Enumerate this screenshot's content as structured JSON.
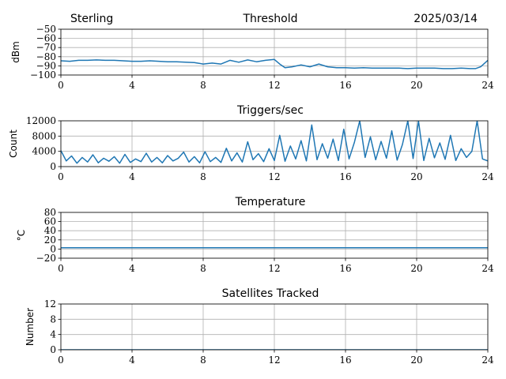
{
  "header": {
    "station": "Sterling",
    "date": "2025/03/14"
  },
  "colors": {
    "series": "#1f77b4",
    "grid": "#b0b0b0"
  },
  "chart_data": [
    {
      "id": "threshold",
      "type": "line",
      "title": "Threshold",
      "xlabel": "",
      "ylabel": "dBm",
      "xlim": [
        0,
        24
      ],
      "ylim": [
        -100,
        -50
      ],
      "xticks": [
        0,
        4,
        8,
        12,
        16,
        20,
        24
      ],
      "yticks": [
        -100,
        -90,
        -80,
        -70,
        -60,
        -50
      ],
      "ytick_labels": [
        "−100",
        "−90",
        "−80",
        "−70",
        "−60",
        "−50"
      ],
      "grid": true,
      "series": [
        {
          "x": [
            0,
            0.5,
            1,
            1.5,
            2,
            2.5,
            3,
            3.5,
            4,
            4.5,
            5,
            5.5,
            6,
            6.5,
            7,
            7.5,
            8,
            8.5,
            9,
            9.5,
            10,
            10.5,
            11,
            11.5,
            12,
            12.3,
            12.6,
            13,
            13.5,
            14,
            14.5,
            15,
            15.5,
            16,
            16.5,
            17,
            17.5,
            18,
            18.5,
            19,
            19.5,
            20,
            20.5,
            21,
            21.5,
            22,
            22.5,
            23,
            23.3,
            23.6,
            24
          ],
          "y": [
            -84.5,
            -85,
            -84,
            -84,
            -83.5,
            -84,
            -84,
            -84.5,
            -85,
            -85,
            -84.5,
            -85,
            -85.5,
            -85.5,
            -86,
            -86.5,
            -88,
            -87,
            -88,
            -84,
            -86,
            -83.5,
            -85.5,
            -84,
            -83,
            -88,
            -92,
            -91,
            -89,
            -91,
            -88,
            -91,
            -92,
            -92,
            -92.5,
            -92,
            -92.5,
            -92.5,
            -92.5,
            -92.5,
            -93,
            -92.5,
            -92.5,
            -92.5,
            -93,
            -93,
            -92.5,
            -93,
            -93,
            -91,
            -84
          ]
        }
      ]
    },
    {
      "id": "triggers",
      "type": "line",
      "title": "Triggers/sec",
      "xlabel": "",
      "ylabel": "Count",
      "xlim": [
        0,
        24
      ],
      "ylim": [
        0,
        12000
      ],
      "xticks": [
        0,
        4,
        8,
        12,
        16,
        20,
        24
      ],
      "yticks": [
        0,
        4000,
        8000,
        12000
      ],
      "ytick_labels": [
        "0",
        "4000",
        "8000",
        "12000"
      ],
      "grid": true,
      "series": [
        {
          "x": [
            0,
            0.3,
            0.6,
            0.9,
            1.2,
            1.5,
            1.8,
            2.1,
            2.4,
            2.7,
            3,
            3.3,
            3.6,
            3.9,
            4.2,
            4.5,
            4.8,
            5.1,
            5.4,
            5.7,
            6,
            6.3,
            6.6,
            6.9,
            7.2,
            7.5,
            7.8,
            8.1,
            8.4,
            8.7,
            9,
            9.3,
            9.6,
            9.9,
            10.2,
            10.5,
            10.8,
            11.1,
            11.4,
            11.7,
            12,
            12.3,
            12.6,
            12.9,
            13.2,
            13.5,
            13.8,
            14.1,
            14.4,
            14.7,
            15,
            15.3,
            15.6,
            15.9,
            16.2,
            16.5,
            16.8,
            17.1,
            17.4,
            17.7,
            18,
            18.3,
            18.6,
            18.9,
            19.2,
            19.5,
            19.8,
            20.1,
            20.4,
            20.7,
            21,
            21.3,
            21.6,
            21.9,
            22.2,
            22.5,
            22.8,
            23.1,
            23.4,
            23.7,
            24
          ],
          "y": [
            4200,
            1500,
            2800,
            900,
            2400,
            1200,
            3100,
            1000,
            2200,
            1400,
            2600,
            900,
            3200,
            1100,
            2000,
            1300,
            3500,
            1200,
            2400,
            1000,
            2900,
            1500,
            2200,
            3800,
            1200,
            2600,
            1000,
            3900,
            1300,
            2400,
            1100,
            4800,
            1500,
            3600,
            1200,
            6500,
            1800,
            3400,
            1300,
            4700,
            1600,
            8200,
            1400,
            5400,
            2000,
            6800,
            1500,
            10900,
            1800,
            6000,
            2200,
            7200,
            1600,
            9800,
            2000,
            6400,
            12000,
            2400,
            7800,
            1800,
            6600,
            2200,
            9400,
            1700,
            5800,
            12000,
            2100,
            12000,
            1600,
            7400,
            2300,
            6200,
            1900,
            8200,
            1600,
            4700,
            2400,
            4000,
            12000,
            2000,
            1500
          ]
        }
      ]
    },
    {
      "id": "temperature",
      "type": "line",
      "title": "Temperature",
      "xlabel": "",
      "ylabel": "°C",
      "xlim": [
        0,
        24
      ],
      "ylim": [
        -20,
        80
      ],
      "xticks": [
        0,
        4,
        8,
        12,
        16,
        20,
        24
      ],
      "yticks": [
        -20,
        0,
        20,
        40,
        60,
        80
      ],
      "ytick_labels": [
        "−20",
        "0",
        "20",
        "40",
        "60",
        "80"
      ],
      "grid": true,
      "series": [
        {
          "x": [
            0,
            24
          ],
          "y": [
            3,
            3
          ]
        }
      ]
    },
    {
      "id": "satellites",
      "type": "line",
      "title": "Satellites Tracked",
      "xlabel": "",
      "ylabel": "Number",
      "xlim": [
        0,
        24
      ],
      "ylim": [
        0,
        12
      ],
      "xticks": [
        0,
        4,
        8,
        12,
        16,
        20,
        24
      ],
      "yticks": [
        0,
        4,
        8,
        12
      ],
      "ytick_labels": [
        "0",
        "4",
        "8",
        "12"
      ],
      "grid": true,
      "series": [
        {
          "x": [
            0,
            24
          ],
          "y": [
            0,
            0
          ]
        }
      ]
    }
  ]
}
